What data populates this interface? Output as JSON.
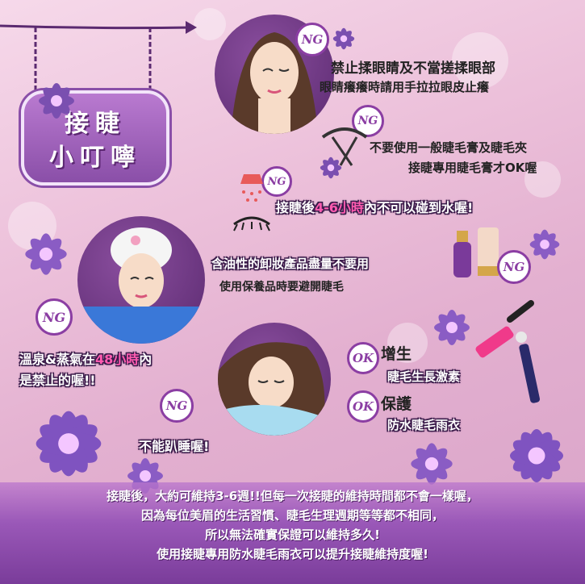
{
  "sign": {
    "line1": "接睫",
    "line2": "小叮嚀"
  },
  "badges": {
    "ng": "NG",
    "ok": "OK"
  },
  "tips": {
    "rub_eyes": {
      "line1": "禁止揉眼睛及不當搓揉眼部",
      "line2": "眼睛癢癢時請用手拉拉眼皮止癢"
    },
    "curler": {
      "line1": "不要使用一般睫毛膏及睫毛夾",
      "line2": "接睫專用睫毛膏才OK喔"
    },
    "water": {
      "prefix": "接睫後",
      "highlight": "4-6小時",
      "suffix": "內不可以碰到水喔!"
    },
    "oil": {
      "line1": "含油性的卸妝產品盡量不要用",
      "line2": "使用保養品時要避開睫毛"
    },
    "spa": {
      "prefix": "溫泉&蒸氣在",
      "highlight": "48小時",
      "suffix": "內",
      "line2": "是禁止的喔!!"
    },
    "sleep": {
      "line1": "不能趴睡喔!"
    }
  },
  "ok_items": [
    {
      "title": "增生",
      "desc": "睫毛生長激素"
    },
    {
      "title": "保護",
      "desc": "防水睫毛雨衣"
    }
  ],
  "footer": {
    "line1": "接睫後，大約可維持3-6週!!但每一次接睫的維持時間都不會一樣喔，",
    "line2": "因為每位美眉的生活習慣、睫毛生理週期等等都不相同，",
    "line3": "所以無法確實保證可以維持多久!",
    "line4": "使用接睫專用防水睫毛雨衣可以提升接睫維持度喔!"
  },
  "colors": {
    "accent": "#8b3ea3",
    "highlight": "#ff5bb0",
    "banner": "#9a58b8"
  }
}
